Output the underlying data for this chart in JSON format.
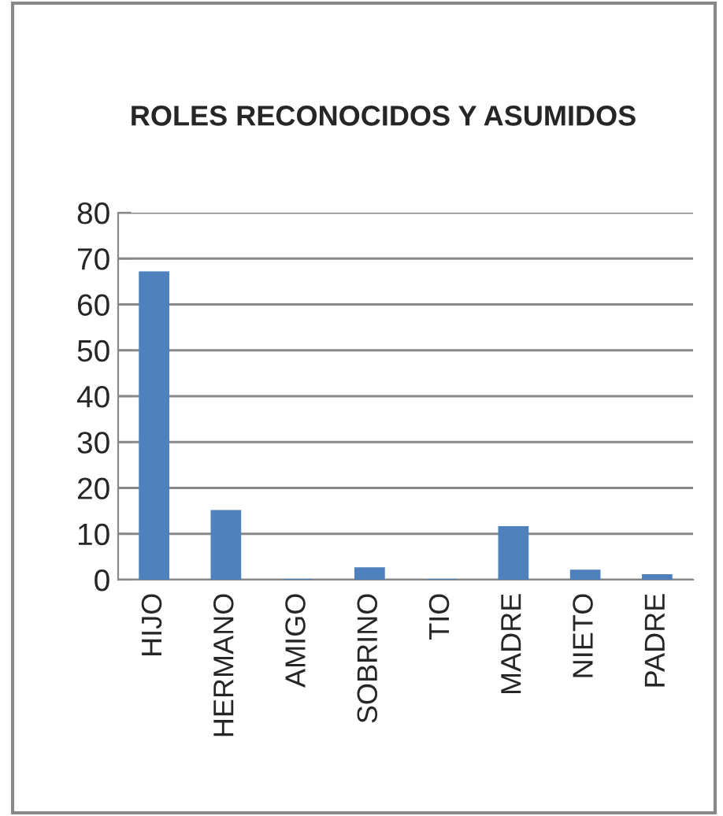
{
  "chart_data": {
    "type": "bar",
    "title": "ROLES RECONOCIDOS Y ASUMIDOS",
    "categories": [
      "HIJO",
      "HERMANO",
      "AMIGO",
      "SOBRINO",
      "TIO",
      "MADRE",
      "NIETO",
      "PADRE"
    ],
    "values": [
      67,
      15,
      0,
      2.5,
      0,
      11.5,
      2,
      1
    ],
    "color": "#4f81bd",
    "ylim": [
      0,
      80
    ],
    "yticks": [
      0,
      10,
      20,
      30,
      40,
      50,
      60,
      70,
      80
    ],
    "grid": "y",
    "legend": false
  }
}
